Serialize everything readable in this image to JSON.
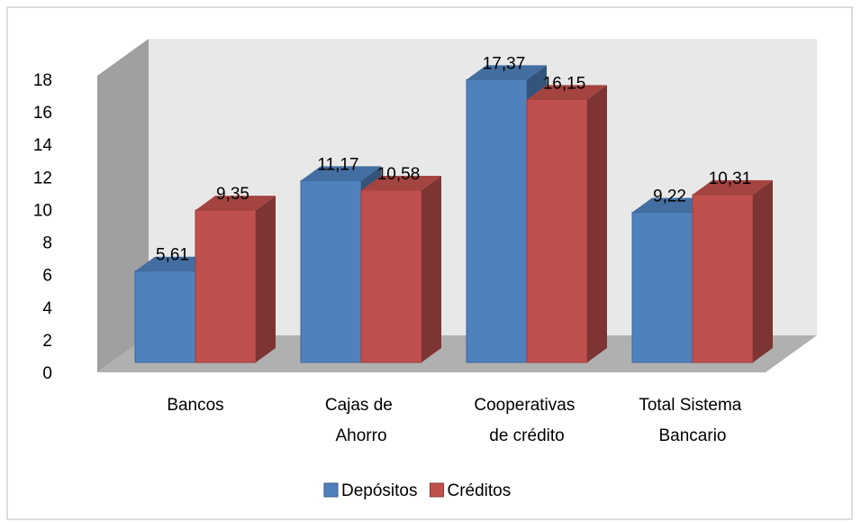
{
  "chart_data": {
    "type": "bar3d",
    "categories": [
      "Bancos",
      "Cajas de Ahorro",
      "Cooperativas de crédito",
      "Total Sistema Bancario"
    ],
    "series": [
      {
        "name": "Depósitos",
        "color": "#4f81bd",
        "values": [
          5.61,
          11.17,
          17.37,
          9.22
        ],
        "value_labels": [
          "5,61",
          "11,17",
          "17,37",
          "9,22"
        ]
      },
      {
        "name": "Créditos",
        "color": "#c0504d",
        "values": [
          9.35,
          10.58,
          16.15,
          10.31
        ],
        "value_labels": [
          "9,35",
          "10,58",
          "16,15",
          "10,31"
        ]
      }
    ],
    "ylim": [
      0,
      18
    ],
    "yticks": [
      0,
      2,
      4,
      6,
      8,
      10,
      12,
      14,
      16,
      18
    ],
    "grid": false,
    "legend": "bottom"
  }
}
